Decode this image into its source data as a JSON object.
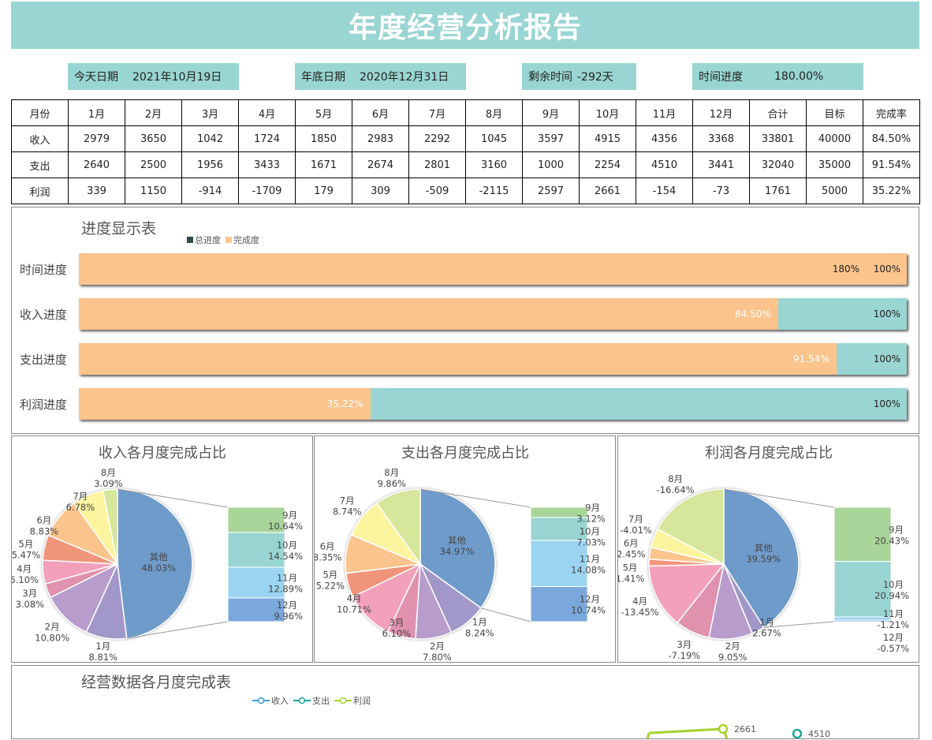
{
  "title": "年度经营分析报告",
  "info": [
    {
      "label": "今天日期",
      "value": "2021年10月19日"
    },
    {
      "label": "年底日期",
      "value": "2020年12月31日"
    },
    {
      "label": "剩余时间",
      "value": "-292天"
    },
    {
      "label": "时间进度",
      "value": "180.00%"
    }
  ],
  "table": {
    "header": [
      "月份",
      "1月",
      "2月",
      "3月",
      "4月",
      "5月",
      "6月",
      "7月",
      "8月",
      "9月",
      "10月",
      "11月",
      "12月",
      "合计",
      "目标",
      "完成率"
    ],
    "rows": [
      [
        "收入",
        "2979",
        "3650",
        "1042",
        "1724",
        "1850",
        "2983",
        "2292",
        "1045",
        "3597",
        "4915",
        "4356",
        "3368",
        "33801",
        "40000",
        "84.50%"
      ],
      [
        "支出",
        "2640",
        "2500",
        "1956",
        "3433",
        "1671",
        "2674",
        "2801",
        "3160",
        "1000",
        "2254",
        "4510",
        "3441",
        "32040",
        "35000",
        "91.54%"
      ],
      [
        "利润",
        "339",
        "1150",
        "-914",
        "-1709",
        "179",
        "309",
        "-509",
        "-2115",
        "2597",
        "2661",
        "-154",
        "-73",
        "1761",
        "5000",
        "35.22%"
      ]
    ]
  },
  "progress": {
    "title": "进度显示表",
    "legend": [
      "总进度",
      "完成度"
    ],
    "colors": {
      "total": "#99d5d2",
      "done": "#fbc48c",
      "legend_total": "#344a4a"
    },
    "rows": [
      {
        "label": "时间进度",
        "value": 180,
        "text": "180%",
        "total": "100%"
      },
      {
        "label": "收入进度",
        "value": 84.5,
        "text": "84.50%",
        "total": "100%"
      },
      {
        "label": "支出进度",
        "value": 91.54,
        "text": "91.54%",
        "total": "100%"
      },
      {
        "label": "利润进度",
        "value": 35.22,
        "text": "35.22%",
        "total": "100%"
      }
    ]
  },
  "chart_data": [
    {
      "type": "pie",
      "title": "收入各月度完成占比",
      "pie": [
        [
          "其他",
          48.03
        ],
        [
          "1月",
          8.81
        ],
        [
          "2月",
          10.8
        ],
        [
          "3月",
          3.08
        ],
        [
          "4月",
          5.1
        ],
        [
          "5月",
          5.47
        ],
        [
          "6月",
          8.83
        ],
        [
          "7月",
          6.78
        ],
        [
          "8月",
          3.09
        ]
      ],
      "bar": [
        [
          "9月",
          10.64
        ],
        [
          "10月",
          14.54
        ],
        [
          "11月",
          12.89
        ],
        [
          "12月",
          9.96
        ]
      ]
    },
    {
      "type": "pie",
      "title": "支出各月度完成占比",
      "pie": [
        [
          "其他",
          34.97
        ],
        [
          "1月",
          8.24
        ],
        [
          "2月",
          7.8
        ],
        [
          "3月",
          6.1
        ],
        [
          "4月",
          10.71
        ],
        [
          "5月",
          5.22
        ],
        [
          "6月",
          8.35
        ],
        [
          "7月",
          8.74
        ],
        [
          "8月",
          9.86
        ]
      ],
      "bar": [
        [
          "9月",
          3.12
        ],
        [
          "10月",
          7.03
        ],
        [
          "11月",
          14.08
        ],
        [
          "12月",
          10.74
        ]
      ]
    },
    {
      "type": "pie",
      "title": "利润各月度完成占比",
      "pie": [
        [
          "其他",
          39.59
        ],
        [
          "1月",
          2.67
        ],
        [
          "2月",
          9.05
        ],
        [
          "3月",
          -7.19
        ],
        [
          "4月",
          -13.45
        ],
        [
          "5月",
          1.41
        ],
        [
          "6月",
          2.45
        ],
        [
          "7月",
          -4.01
        ],
        [
          "8月",
          -16.64
        ]
      ],
      "bar": [
        [
          "9月",
          20.43
        ],
        [
          "10月",
          20.94
        ],
        [
          "11月",
          -1.21
        ],
        [
          "12月",
          -0.57
        ]
      ]
    },
    {
      "type": "line",
      "title": "经营数据各月度完成表",
      "series": [
        {
          "name": "收入",
          "color": "#3a9ad9"
        },
        {
          "name": "支出",
          "color": "#1aa89a"
        },
        {
          "name": "利润",
          "color": "#a6d02a"
        }
      ],
      "labels": [
        "2661",
        "4510"
      ]
    }
  ],
  "pie_colors": [
    "#6f9bcb",
    "#a198c9",
    "#b79ccc",
    "#df91ae",
    "#f3a0bb",
    "#f0957a",
    "#fbc48c",
    "#fdf4a0",
    "#d6e69a"
  ],
  "bar_colors": [
    "#a8d59a",
    "#98d5d2",
    "#9ad4f0",
    "#7ba8dc"
  ]
}
